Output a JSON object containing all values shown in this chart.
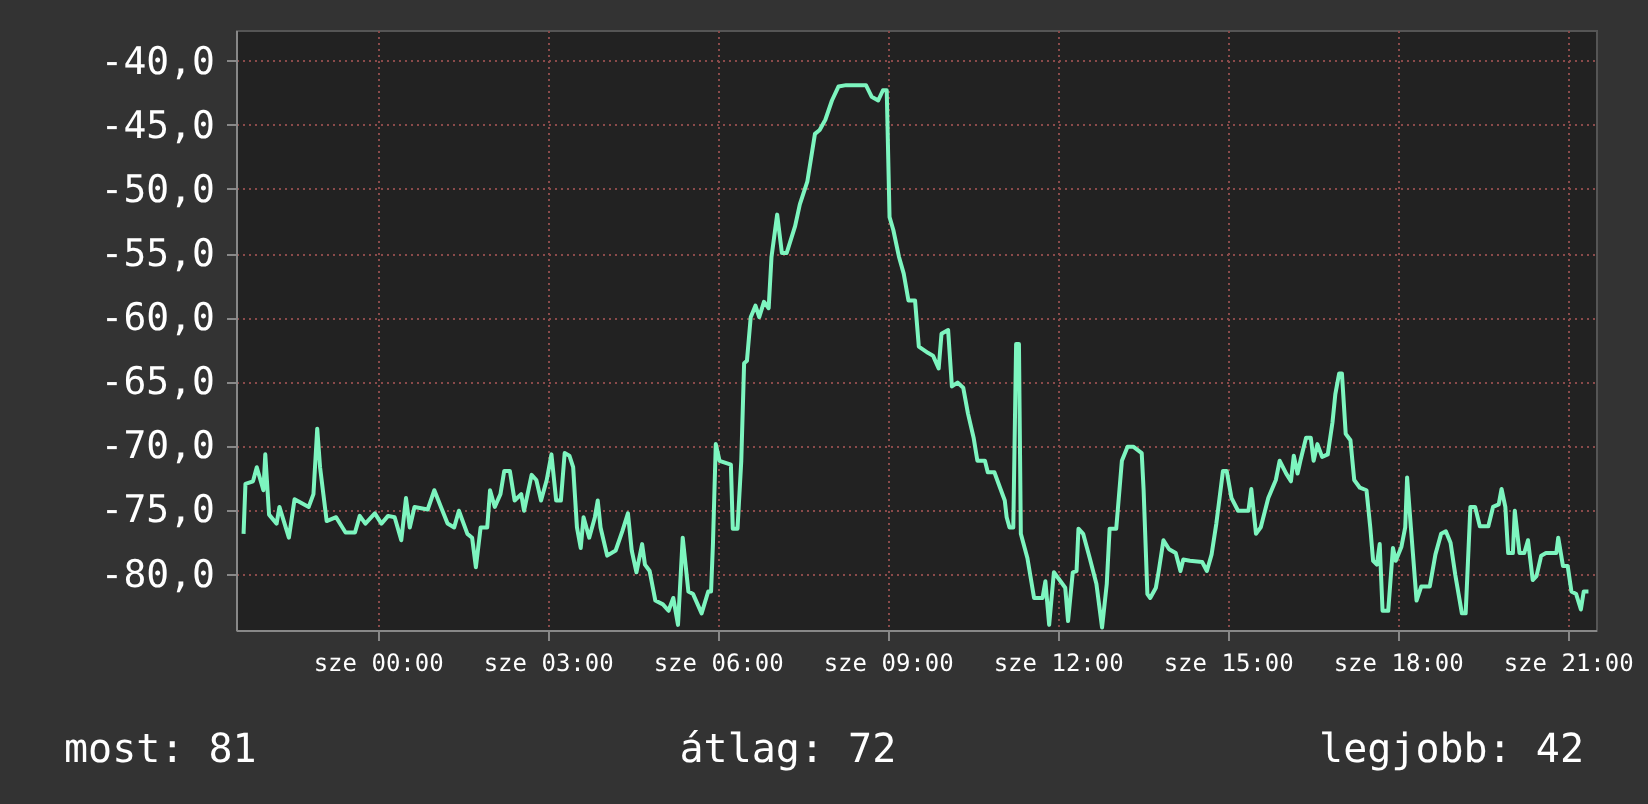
{
  "chart_data": {
    "type": "line",
    "x": [
      "--01-07T21:38",
      "--01-07T21:40",
      "--01-07T21:48",
      "--01-07T21:52",
      "--01-07T21:59",
      "--01-07T22:01",
      "--01-07T22:05",
      "--01-07T22:13",
      "--01-07T22:16",
      "--01-07T22:26",
      "--01-07T22:32",
      "--01-07T22:47",
      "--01-07T22:52",
      "--01-07T22:56",
      "--01-07T22:59",
      "--01-07T23:06",
      "--01-07T23:16",
      "--01-07T23:26",
      "--01-07T23:36",
      "--01-07T23:41",
      "--01-07T23:47",
      "--01-07T23:57",
      "--01-08T00:04",
      "--01-08T00:11",
      "--01-08T00:18",
      "--01-08T00:25",
      "--01-08T00:30",
      "--01-08T00:34",
      "--01-08T00:39",
      "--01-08T00:53",
      "--01-08T01:00",
      "--01-08T01:07",
      "--01-08T01:14",
      "--01-08T01:21",
      "--01-08T01:26",
      "--01-08T01:35",
      "--01-08T01:40",
      "--01-08T01:44",
      "--01-08T01:49",
      "--01-08T01:56",
      "--01-08T01:59",
      "--01-08T02:04",
      "--01-08T02:10",
      "--01-08T02:14",
      "--01-08T02:20",
      "--01-08T02:25",
      "--01-08T02:32",
      "--01-08T02:35",
      "--01-08T02:43",
      "--01-08T02:48",
      "--01-08T02:53",
      "--01-08T02:59",
      "--01-08T03:04",
      "--01-08T03:09",
      "--01-08T03:14",
      "--01-08T03:18",
      "--01-08T03:23",
      "--01-08T03:27",
      "--01-08T03:31",
      "--01-08T03:35",
      "--01-08T03:38",
      "--01-08T03:44",
      "--01-08T03:50",
      "--01-08T03:53",
      "--01-08T03:56",
      "--01-08T04:03",
      "--01-08T04:12",
      "--01-08T04:19",
      "--01-08T04:25",
      "--01-08T04:29",
      "--01-08T04:34",
      "--01-08T04:40",
      "--01-08T04:43",
      "--01-08T04:48",
      "--01-08T04:54",
      "--01-08T05:02",
      "--01-08T05:08",
      "--01-08T05:13",
      "--01-08T05:18",
      "--01-08T05:23",
      "--01-08T05:29",
      "--01-08T05:34",
      "--01-08T05:43",
      "--01-08T05:50",
      "--01-08T05:53",
      "--01-08T05:55",
      "--01-08T05:58",
      "--01-08T06:02",
      "--01-08T06:14",
      "--01-08T06:16",
      "--01-08T06:21",
      "--01-08T06:25",
      "--01-08T06:28",
      "--01-08T06:31",
      "--01-08T06:35",
      "--01-08T06:40",
      "--01-08T06:44",
      "--01-08T06:49",
      "--01-08T06:54",
      "--01-08T06:57",
      "--01-08T07:03",
      "--01-08T07:08",
      "--01-08T07:13",
      "--01-08T07:22",
      "--01-08T07:27",
      "--01-08T07:35",
      "--01-08T07:43",
      "--01-08T07:48",
      "--01-08T07:54",
      "--01-08T08:01",
      "--01-08T08:08",
      "--01-08T08:16",
      "--01-08T08:37",
      "--01-08T08:43",
      "--01-08T08:50",
      "--01-08T08:55",
      "--01-08T08:59",
      "--01-08T09:02",
      "--01-08T09:06",
      "--01-08T09:12",
      "--01-08T09:17",
      "--01-08T09:22",
      "--01-08T09:29",
      "--01-08T09:33",
      "--01-08T09:43",
      "--01-08T09:48",
      "--01-08T09:54",
      "--01-08T09:57",
      "--01-08T10:04",
      "--01-08T10:08",
      "--01-08T10:14",
      "--01-08T10:20",
      "--01-08T10:25",
      "--01-08T10:31",
      "--01-08T10:35",
      "--01-08T10:43",
      "--01-08T10:46",
      "--01-08T10:53",
      "--01-08T10:59",
      "--01-08T11:04",
      "--01-08T11:06",
      "--01-08T11:09",
      "--01-08T11:13",
      "--01-08T11:16",
      "--01-08T11:19",
      "--01-08T11:21",
      "--01-08T11:28",
      "--01-08T11:35",
      "--01-08T11:44",
      "--01-08T11:47",
      "--01-08T11:51",
      "--01-08T11:56",
      "--01-08T12:03",
      "--01-08T12:08",
      "--01-08T12:11",
      "--01-08T12:16",
      "--01-08T12:20",
      "--01-08T12:22",
      "--01-08T12:27",
      "--01-08T12:34",
      "--01-08T12:41",
      "--01-08T12:47",
      "--01-08T12:52",
      "--01-08T12:55",
      "--01-08T13:02",
      "--01-08T13:08",
      "--01-08T13:14",
      "--01-08T13:20",
      "--01-08T13:29",
      "--01-08T13:31",
      "--01-08T13:35",
      "--01-08T13:38",
      "--01-08T13:44",
      "--01-08T13:47",
      "--01-08T13:52",
      "--01-08T13:58",
      "--01-08T14:05",
      "--01-08T14:10",
      "--01-08T14:13",
      "--01-08T14:20",
      "--01-08T14:33",
      "--01-08T14:38",
      "--01-08T14:43",
      "--01-08T14:48",
      "--01-08T14:55",
      "--01-08T14:59",
      "--01-08T15:04",
      "--01-08T15:11",
      "--01-08T15:22",
      "--01-08T15:25",
      "--01-08T15:30",
      "--01-08T15:35",
      "--01-08T15:43",
      "--01-08T15:51",
      "--01-08T15:55",
      "--01-08T16:02",
      "--01-08T16:07",
      "--01-08T16:10",
      "--01-08T16:14",
      "--01-08T16:17",
      "--01-08T16:23",
      "--01-08T16:28",
      "--01-08T16:31",
      "--01-08T16:35",
      "--01-08T16:40",
      "--01-08T16:46",
      "--01-08T16:51",
      "--01-08T16:54",
      "--01-08T16:58",
      "--01-08T17:01",
      "--01-08T17:05",
      "--01-08T17:10",
      "--01-08T17:14",
      "--01-08T17:20",
      "--01-08T17:27",
      "--01-08T17:31",
      "--01-08T17:34",
      "--01-08T17:38",
      "--01-08T17:41",
      "--01-08T17:44",
      "--01-08T17:50",
      "--01-08T17:55",
      "--01-08T17:58",
      "--01-08T18:04",
      "--01-08T18:08",
      "--01-08T18:10",
      "--01-08T18:14",
      "--01-08T18:20",
      "--01-08T18:25",
      "--01-08T18:34",
      "--01-08T18:40",
      "--01-08T18:46",
      "--01-08T18:51",
      "--01-08T18:56",
      "--01-08T19:01",
      "--01-08T19:08",
      "--01-08T19:12",
      "--01-08T19:17",
      "--01-08T19:22",
      "--01-08T19:27",
      "--01-08T19:36",
      "--01-08T19:41",
      "--01-08T19:47",
      "--01-08T19:50",
      "--01-08T19:54",
      "--01-08T19:57",
      "--01-08T20:02",
      "--01-08T20:04",
      "--01-08T20:09",
      "--01-08T20:14",
      "--01-08T20:18",
      "--01-08T20:23",
      "--01-08T20:27",
      "--01-08T20:32",
      "--01-08T20:37",
      "--01-08T20:48",
      "--01-08T20:50",
      "--01-08T20:55",
      "--01-08T21:00",
      "--01-08T21:04",
      "--01-08T21:09",
      "--01-08T21:14",
      "--01-08T21:17",
      "--01-08T21:22"
    ],
    "series": [
      {
        "color": "#7df5bf",
        "values": [
          -76.9,
          -73.0,
          -72.8,
          -71.7,
          -73.5,
          -70.7,
          -75.4,
          -76.1,
          -74.8,
          -77.2,
          -74.2,
          -74.8,
          -73.8,
          -68.7,
          -71.7,
          -75.9,
          -75.6,
          -76.8,
          -76.8,
          -75.5,
          -76.1,
          -75.3,
          -76.1,
          -75.5,
          -75.6,
          -77.4,
          -74.1,
          -76.4,
          -74.8,
          -75.0,
          -73.5,
          -74.8,
          -76.1,
          -76.4,
          -75.1,
          -76.9,
          -77.2,
          -79.5,
          -76.4,
          -76.4,
          -73.5,
          -74.8,
          -73.8,
          -72.0,
          -72.0,
          -74.3,
          -73.8,
          -75.1,
          -72.3,
          -72.7,
          -74.3,
          -72.7,
          -70.7,
          -74.3,
          -74.3,
          -70.6,
          -70.8,
          -71.7,
          -76.4,
          -78.0,
          -75.6,
          -77.2,
          -75.6,
          -74.3,
          -76.4,
          -78.6,
          -78.2,
          -76.7,
          -75.3,
          -78.2,
          -79.9,
          -77.7,
          -79.3,
          -79.8,
          -82.1,
          -82.4,
          -82.9,
          -81.9,
          -84.0,
          -77.2,
          -81.4,
          -81.6,
          -83.1,
          -81.4,
          -81.4,
          -77.7,
          -69.9,
          -71.2,
          -71.5,
          -76.5,
          -76.5,
          -71.2,
          -63.6,
          -63.4,
          -60.0,
          -59.1,
          -60.0,
          -58.8,
          -59.3,
          -55.3,
          -52.0,
          -55.0,
          -55.0,
          -52.9,
          -51.2,
          -49.4,
          -45.7,
          -45.4,
          -44.6,
          -43.1,
          -42.0,
          -41.9,
          -41.9,
          -42.8,
          -43.1,
          -42.3,
          -42.3,
          -52.2,
          -53.2,
          -55.3,
          -56.6,
          -58.7,
          -58.7,
          -62.3,
          -62.8,
          -63.0,
          -64.0,
          -61.3,
          -61.0,
          -65.4,
          -65.1,
          -65.5,
          -67.5,
          -69.4,
          -71.2,
          -71.2,
          -72.1,
          -72.1,
          -73.3,
          -74.3,
          -75.6,
          -76.4,
          -76.4,
          -62.1,
          -62.1,
          -76.9,
          -78.8,
          -81.9,
          -81.9,
          -80.6,
          -84.0,
          -79.9,
          -80.6,
          -81.1,
          -83.7,
          -79.9,
          -79.8,
          -76.5,
          -76.9,
          -78.8,
          -80.8,
          -84.2,
          -80.8,
          -76.5,
          -76.5,
          -71.2,
          -70.1,
          -70.1,
          -70.6,
          -73.5,
          -81.6,
          -81.9,
          -81.1,
          -79.8,
          -77.4,
          -78.1,
          -78.4,
          -79.8,
          -78.9,
          -79.0,
          -79.1,
          -79.8,
          -78.5,
          -76.1,
          -72.0,
          -72.0,
          -74.1,
          -75.1,
          -75.1,
          -73.4,
          -76.9,
          -76.4,
          -74.1,
          -72.7,
          -71.2,
          -72.2,
          -72.8,
          -70.8,
          -72.2,
          -71.2,
          -69.4,
          -69.4,
          -71.2,
          -69.9,
          -70.9,
          -70.7,
          -68.2,
          -66.0,
          -64.4,
          -64.4,
          -69.1,
          -69.6,
          -72.7,
          -73.3,
          -73.5,
          -76.4,
          -79.0,
          -79.3,
          -77.7,
          -82.9,
          -82.9,
          -78.0,
          -79.0,
          -77.9,
          -76.4,
          -72.5,
          -76.4,
          -82.1,
          -81.0,
          -81.0,
          -78.5,
          -76.9,
          -76.7,
          -77.6,
          -80.1,
          -83.1,
          -83.1,
          -74.8,
          -74.8,
          -76.3,
          -76.3,
          -74.8,
          -74.6,
          -73.4,
          -74.8,
          -78.4,
          -78.4,
          -75.1,
          -78.4,
          -78.4,
          -77.4,
          -80.5,
          -80.2,
          -78.6,
          -78.4,
          -78.4,
          -77.2,
          -79.4,
          -79.4,
          -81.4,
          -81.6,
          -82.8,
          -81.4,
          -81.4
        ]
      }
    ],
    "xlim": [
      "--01-07T21:30",
      "--01-08T21:30"
    ],
    "xticks": [
      {
        "value": "--01-08T00:00",
        "label": "sze 00:00"
      },
      {
        "value": "--01-08T03:00",
        "label": "sze 03:00"
      },
      {
        "value": "--01-08T06:00",
        "label": "sze 06:00"
      },
      {
        "value": "--01-08T09:00",
        "label": "sze 09:00"
      },
      {
        "value": "--01-08T12:00",
        "label": "sze 12:00"
      },
      {
        "value": "--01-08T15:00",
        "label": "sze 15:00"
      },
      {
        "value": "--01-08T18:00",
        "label": "sze 18:00"
      },
      {
        "value": "--01-08T21:00",
        "label": "sze 21:00"
      }
    ],
    "ylim": [
      -84.4,
      -37.6
    ],
    "yticks": [
      {
        "value": -40,
        "label": "-40,0"
      },
      {
        "value": -45,
        "label": "-45,0"
      },
      {
        "value": -50,
        "label": "-50,0"
      },
      {
        "value": -55,
        "label": "-55,0"
      },
      {
        "value": -60,
        "label": "-60,0"
      },
      {
        "value": -65,
        "label": "-65,0"
      },
      {
        "value": -70,
        "label": "-70,0"
      },
      {
        "value": -75,
        "label": "-75,0"
      },
      {
        "value": -80,
        "label": "-80,0"
      }
    ],
    "grid": true,
    "annotations": [
      "most: 81",
      "átlag: 72",
      "legjobb: 42"
    ]
  }
}
